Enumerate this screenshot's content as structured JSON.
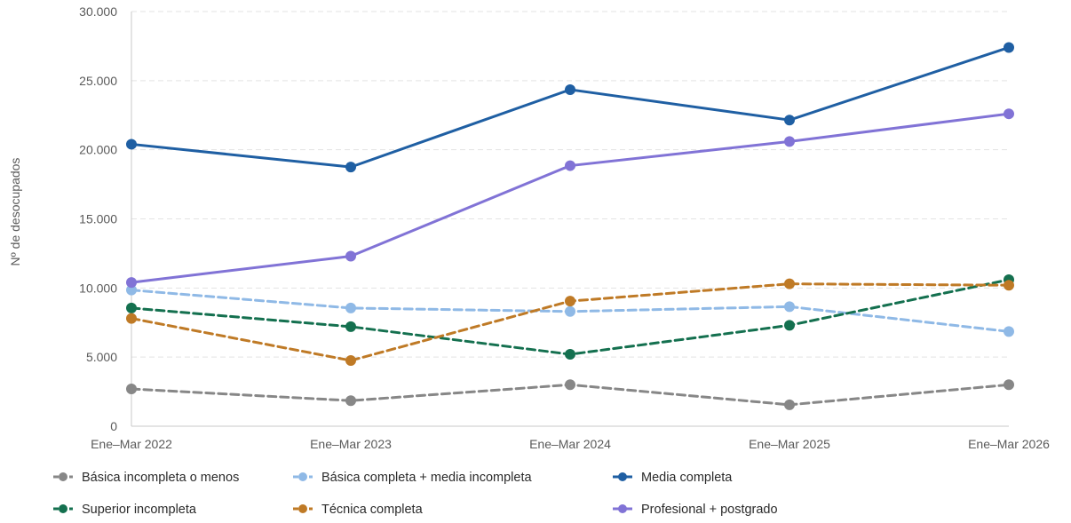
{
  "chart_data": {
    "type": "line",
    "ylabel": "Nº de desocupados",
    "xlabel": "",
    "categories": [
      "Ene–Mar 2022",
      "Ene–Mar 2023",
      "Ene–Mar 2024",
      "Ene–Mar 2025",
      "Ene–Mar 2026"
    ],
    "y_ticks": [
      0,
      5000,
      10000,
      15000,
      20000,
      25000,
      30000
    ],
    "y_tick_labels": [
      "0",
      "5.000",
      "10.000",
      "15.000",
      "20.000",
      "25.000",
      "30.000"
    ],
    "ylim": [
      0,
      30000
    ],
    "grid": "horizontal-dashed",
    "legend_position": "bottom",
    "series": [
      {
        "name": "Básica incompleta o menos",
        "color": "#878787",
        "dashed": true,
        "values": [
          2700,
          1850,
          3000,
          1550,
          3000
        ]
      },
      {
        "name": "Básica completa + media incompleta",
        "color": "#8fb9e6",
        "dashed": true,
        "values": [
          9850,
          8550,
          8300,
          8650,
          6850
        ]
      },
      {
        "name": "Media completa",
        "color": "#1f5fa3",
        "dashed": false,
        "values": [
          20400,
          18750,
          24350,
          22150,
          27400
        ]
      },
      {
        "name": "Superior incompleta",
        "color": "#14704f",
        "dashed": true,
        "values": [
          8550,
          7200,
          5200,
          7300,
          10600
        ]
      },
      {
        "name": "Técnica completa",
        "color": "#bf7a26",
        "dashed": true,
        "values": [
          7800,
          4750,
          9050,
          10300,
          10200
        ]
      },
      {
        "name": "Profesional + postgrado",
        "color": "#8173d6",
        "dashed": false,
        "values": [
          10400,
          12300,
          18850,
          20600,
          22600
        ]
      }
    ]
  }
}
